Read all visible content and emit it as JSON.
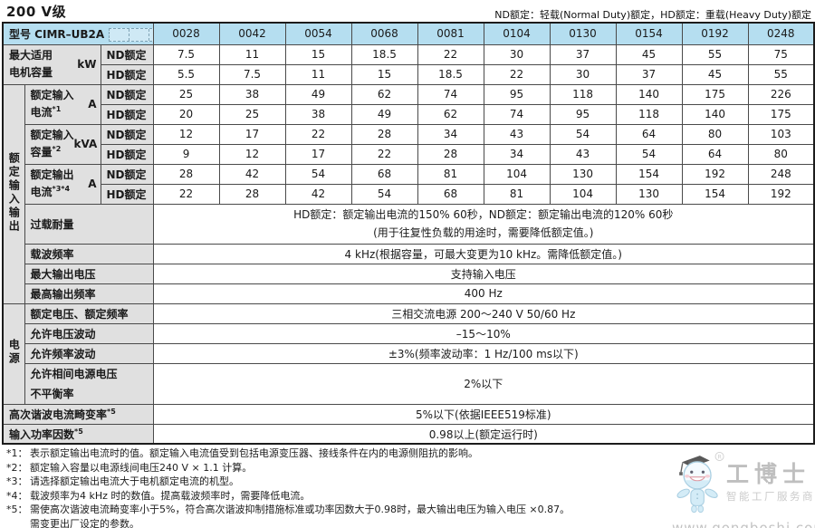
{
  "page": {
    "title": "200 V级",
    "top_note": "ND额定：轻载(Normal Duty)额定，HD额定：重载(Heavy Duty)额定"
  },
  "table": {
    "model_prefix": "型号 CIMR–UB2A",
    "models": [
      "0028",
      "0042",
      "0054",
      "0068",
      "0081",
      "0104",
      "0130",
      "0154",
      "0192",
      "0248"
    ],
    "group_io": "额定输入输出",
    "group_power": "电源",
    "nd_label": "ND额定",
    "hd_label": "HD额定",
    "rows": {
      "motor": {
        "line1": "最大适用",
        "line2": "电机容量",
        "sup": "",
        "unit": "kW",
        "nd": [
          "7.5",
          "11",
          "15",
          "18.5",
          "22",
          "30",
          "37",
          "45",
          "55",
          "75"
        ],
        "hd": [
          "5.5",
          "7.5",
          "11",
          "15",
          "18.5",
          "22",
          "30",
          "37",
          "45",
          "55"
        ]
      },
      "input_current": {
        "line1": "额定输入",
        "line2": "电流",
        "sup": "*1",
        "unit": "A",
        "nd": [
          "25",
          "38",
          "49",
          "62",
          "74",
          "95",
          "118",
          "140",
          "175",
          "226"
        ],
        "hd": [
          "20",
          "25",
          "38",
          "49",
          "62",
          "74",
          "95",
          "118",
          "140",
          "175"
        ]
      },
      "input_capacity": {
        "line1": "额定输入",
        "line2": "容量",
        "sup": "*2",
        "unit": "kVA",
        "nd": [
          "12",
          "17",
          "22",
          "28",
          "34",
          "43",
          "54",
          "64",
          "80",
          "103"
        ],
        "hd": [
          "9",
          "12",
          "17",
          "22",
          "28",
          "34",
          "43",
          "54",
          "64",
          "80"
        ]
      },
      "output_current": {
        "line1": "额定输出",
        "line2": "电流",
        "sup": "*3*4",
        "unit": "A",
        "nd": [
          "28",
          "42",
          "54",
          "68",
          "81",
          "104",
          "130",
          "154",
          "192",
          "248"
        ],
        "hd": [
          "22",
          "28",
          "42",
          "54",
          "68",
          "81",
          "104",
          "130",
          "154",
          "192"
        ]
      },
      "overload": {
        "label": "过载耐量",
        "value1": "HD额定：额定输出电流的150% 60秒，ND额定：额定输出电流的120% 60秒",
        "value2": "(用于往复性负载的用途时，需要降低额定值。)"
      },
      "carrier": {
        "label": "载波频率",
        "value": "4 kHz(根据容量，可最大变更为10 kHz。需降低额定值。)"
      },
      "max_voltage": {
        "label": "最大输出电压",
        "value": "支持输入电压"
      },
      "max_freq": {
        "label": "最高输出频率",
        "value": "400 Hz"
      },
      "rated_vf": {
        "label": "额定电压、额定频率",
        "value": "三相交流电源  200～240 V  50/60 Hz"
      },
      "volt_fluct": {
        "label": "允许电压波动",
        "value": "–15～10%"
      },
      "freq_fluct": {
        "label": "允许频率波动",
        "value": "±3%(频率波动率：1 Hz/100 ms以下)"
      },
      "imbalance": {
        "label1": "允许相间电源电压",
        "label2": "不平衡率",
        "value": "2%以下"
      },
      "harmonic": {
        "label": "高次谐波电流畸变率",
        "sup": "*5",
        "value": "5%以下(依据IEEE519标准)"
      },
      "power_factor": {
        "label": "输入功率因数",
        "sup": "*5",
        "value": "0.98以上(额定运行时)"
      }
    }
  },
  "footnotes": [
    {
      "marker": "*1：",
      "text": "表示额定输出电流时的值。额定输入电流值受到包括电源变压器、接线条件在内的电源侧阻抗的影响。"
    },
    {
      "marker": "*2：",
      "text": "额定输入容量以电源线间电压240 V × 1.1 计算。"
    },
    {
      "marker": "*3：",
      "text": "请选择额定输出电流大于电机额定电流的机型。"
    },
    {
      "marker": "*4：",
      "text": "载波频率为4 kHz 时的数值。提高载波频率时，需要降低电流。"
    },
    {
      "marker": "*5：",
      "text": "需使高次谐波电流畸变率小于5%，符合高次谐波抑制措施标准或功率因数大于0.98时，最大输出电压为输入电压 ×0.87。",
      "text2": "需变更出厂设定的参数。"
    }
  ],
  "watermark": {
    "brand": "工博士",
    "tagline": "智能工厂服务商",
    "url": "www.gongboshi.com",
    "registered": "®"
  }
}
